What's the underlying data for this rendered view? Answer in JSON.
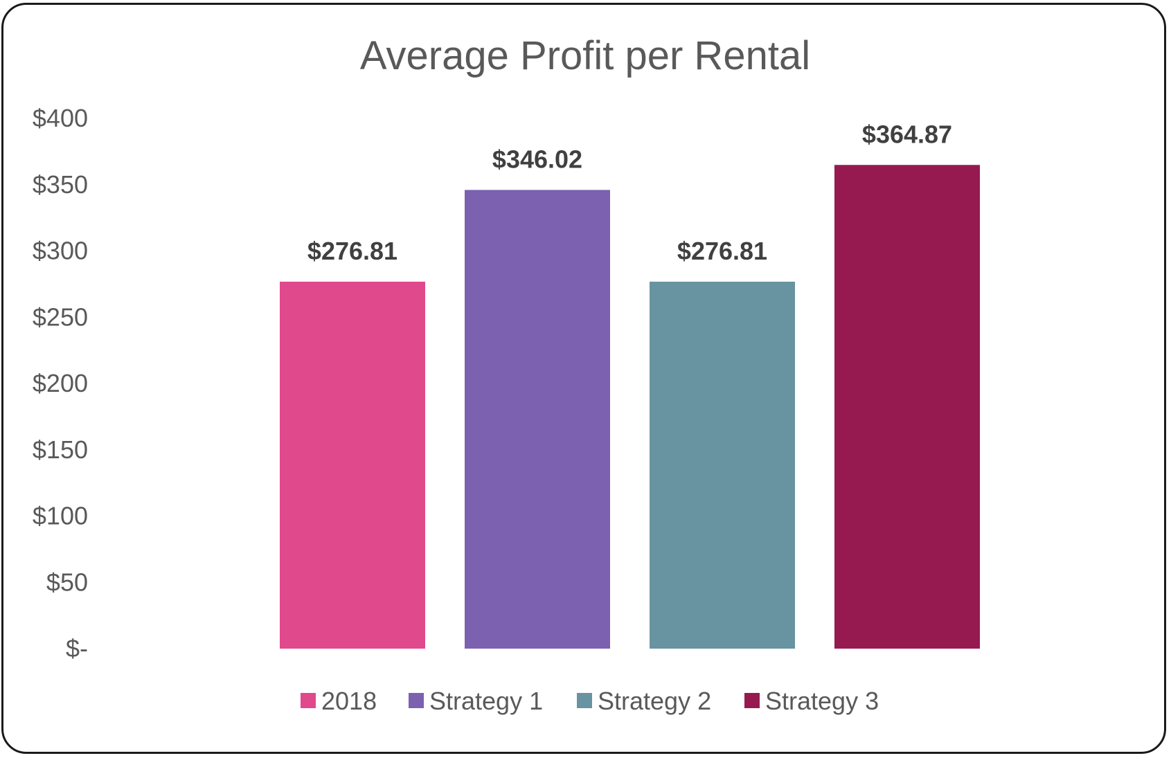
{
  "chart_data": {
    "type": "bar",
    "title": "Average Profit per Rental",
    "xlabel": "",
    "ylabel": "",
    "ylim": [
      0,
      400
    ],
    "y_ticks": [
      0,
      50,
      100,
      150,
      200,
      250,
      300,
      350,
      400
    ],
    "y_tick_labels": [
      "$-",
      "$50",
      "$100",
      "$150",
      "$200",
      "$250",
      "$300",
      "$350",
      "$400"
    ],
    "categories": [
      "2018",
      "Strategy 1",
      "Strategy 2",
      "Strategy 3"
    ],
    "values": [
      276.81,
      346.02,
      276.81,
      364.87
    ],
    "data_labels": [
      "$276.81",
      "$346.02",
      "$276.81",
      "$364.87"
    ],
    "colors": [
      "#E0498C",
      "#7B61B0",
      "#6893A0",
      "#961A50"
    ],
    "grid": false,
    "legend_position": "bottom"
  }
}
